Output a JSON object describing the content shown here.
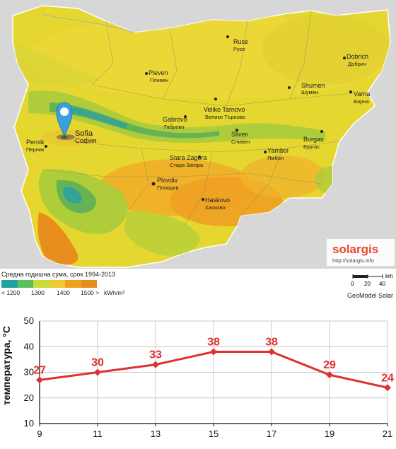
{
  "map": {
    "cities": [
      {
        "en": "Ruse",
        "bg": "Русе"
      },
      {
        "en": "Dobrich",
        "bg": "Добрич"
      },
      {
        "en": "Pleven",
        "bg": "Плевен"
      },
      {
        "en": "Shumen",
        "bg": "Шумен"
      },
      {
        "en": "Varna",
        "bg": "Варна"
      },
      {
        "en": "Veliko Tarnovo",
        "bg": "Велико Търново"
      },
      {
        "en": "Gabrovo",
        "bg": "Габрово"
      },
      {
        "en": "Sofia",
        "bg": "София"
      },
      {
        "en": "Pernik",
        "bg": "Перник"
      },
      {
        "en": "Sliven",
        "bg": "Сливен"
      },
      {
        "en": "Burgas",
        "bg": "Бургас"
      },
      {
        "en": "Yambol",
        "bg": "Ямбол"
      },
      {
        "en": "Stara Zagora",
        "bg": "Стара Загора"
      },
      {
        "en": "Plovdiv",
        "bg": "Пловдив"
      },
      {
        "en": "Haskovo",
        "bg": "Хасково"
      }
    ],
    "brand": "solargis",
    "brand_url": "http://solargis.info",
    "brand_color": "#e8452c",
    "pin_color": "#3aa0e0"
  },
  "legend": {
    "caption": "Средна годишна сума, срок 1994-2013",
    "colors": [
      "#22a0a0",
      "#5dc060",
      "#c8dc3c",
      "#f0c830",
      "#f0a020",
      "#e88a1c"
    ],
    "ticks": [
      "< 1200",
      "1300",
      "1400",
      "1500 >",
      "kWh/m²"
    ],
    "scale_labels": [
      "0",
      "20",
      "40",
      "km"
    ],
    "credit": "GeoModel Solar"
  },
  "chart_data": {
    "type": "line",
    "x": [
      9,
      11,
      13,
      15,
      17,
      19,
      21
    ],
    "values": [
      27,
      30,
      33,
      38,
      38,
      29,
      24
    ],
    "data_labels": [
      "27",
      "30",
      "33",
      "38",
      "38",
      "29",
      "24"
    ],
    "xticks": [
      "9",
      "11",
      "13",
      "15",
      "17",
      "19",
      "21"
    ],
    "yticks": [
      "10",
      "20",
      "30",
      "40",
      "50"
    ],
    "ylabel": "температура, °C",
    "xlabel": "",
    "xlim": [
      9,
      21
    ],
    "ylim": [
      10,
      50
    ],
    "grid": true,
    "line_color": "#e03030"
  }
}
